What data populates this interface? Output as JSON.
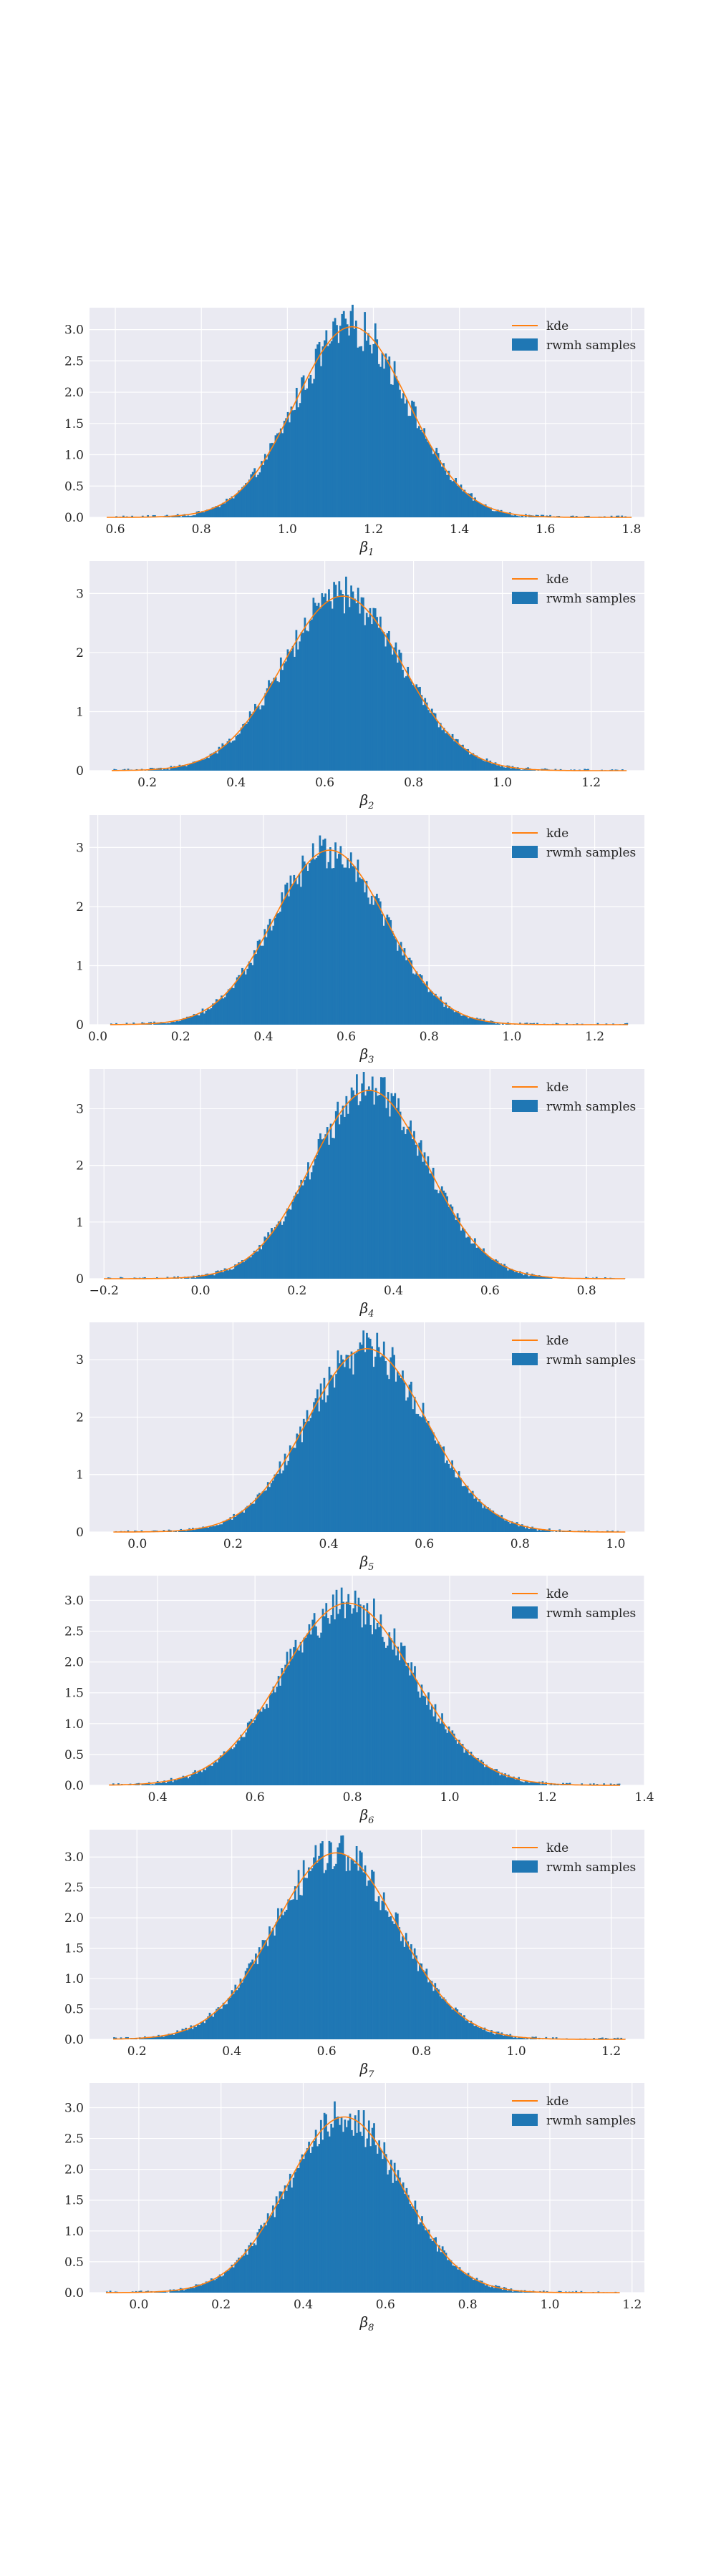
{
  "figure": {
    "background": "#ffffff",
    "axes_facecolor": "#eaeaf2",
    "grid_color": "#ffffff",
    "bar_color": "#1f77b4",
    "kde_color": "#ff7f0e"
  },
  "chart_data": [
    {
      "type": "bar",
      "title": "",
      "xlabel_base": "β",
      "xlabel_sub": "1",
      "xlim": [
        0.54,
        1.83
      ],
      "ylim": [
        0,
        3.35
      ],
      "xticks": [
        0.6,
        0.8,
        1.0,
        1.2,
        1.4,
        1.6,
        1.8
      ],
      "xtick_labels": [
        "0.6",
        "0.8",
        "1.0",
        "1.2",
        "1.4",
        "1.6",
        "1.8"
      ],
      "yticks": [
        0.0,
        0.5,
        1.0,
        1.5,
        2.0,
        2.5,
        3.0
      ],
      "ytick_labels": [
        "0.0",
        "0.5",
        "1.0",
        "1.5",
        "2.0",
        "2.5",
        "3.0"
      ],
      "grid": true,
      "legend_placement": "upper right",
      "series": [
        {
          "name": "kde",
          "kind": "line",
          "distribution": "normal",
          "mean": 1.15,
          "sd": 0.131,
          "range": [
            0.58,
            1.8
          ]
        },
        {
          "name": "rwmh samples",
          "kind": "histogram",
          "distribution": "normal",
          "mean": 1.15,
          "sd": 0.131,
          "range": [
            0.58,
            1.8
          ]
        }
      ]
    },
    {
      "type": "bar",
      "title": "",
      "xlabel_base": "β",
      "xlabel_sub": "2",
      "xlim": [
        0.07,
        1.32
      ],
      "ylim": [
        0,
        3.55
      ],
      "xticks": [
        0.2,
        0.4,
        0.6,
        0.8,
        1.0,
        1.2
      ],
      "xtick_labels": [
        "0.2",
        "0.4",
        "0.6",
        "0.8",
        "1.0",
        "1.2"
      ],
      "yticks": [
        0,
        1,
        2,
        3
      ],
      "ytick_labels": [
        "0",
        "1",
        "2",
        "3"
      ],
      "grid": true,
      "legend_placement": "upper right",
      "series": [
        {
          "name": "kde",
          "kind": "line",
          "distribution": "normal",
          "mean": 0.64,
          "sd": 0.135,
          "range": [
            0.12,
            1.28
          ]
        },
        {
          "name": "rwmh samples",
          "kind": "histogram",
          "distribution": "normal",
          "mean": 0.64,
          "sd": 0.135,
          "range": [
            0.12,
            1.28
          ]
        }
      ]
    },
    {
      "type": "bar",
      "title": "",
      "xlabel_base": "β",
      "xlabel_sub": "3",
      "xlim": [
        -0.02,
        1.32
      ],
      "ylim": [
        0,
        3.55
      ],
      "xticks": [
        0.0,
        0.2,
        0.4,
        0.6,
        0.8,
        1.0,
        1.2
      ],
      "xtick_labels": [
        "0.0",
        "0.2",
        "0.4",
        "0.6",
        "0.8",
        "1.0",
        "1.2"
      ],
      "yticks": [
        0,
        1,
        2,
        3
      ],
      "ytick_labels": [
        "0",
        "1",
        "2",
        "3"
      ],
      "grid": true,
      "legend_placement": "upper right",
      "series": [
        {
          "name": "kde",
          "kind": "line",
          "distribution": "normal",
          "mean": 0.56,
          "sd": 0.135,
          "range": [
            0.03,
            1.28
          ]
        },
        {
          "name": "rwmh samples",
          "kind": "histogram",
          "distribution": "normal",
          "mean": 0.56,
          "sd": 0.135,
          "range": [
            0.03,
            1.28
          ]
        }
      ]
    },
    {
      "type": "bar",
      "title": "",
      "xlabel_base": "β",
      "xlabel_sub": "4",
      "xlim": [
        -0.23,
        0.92
      ],
      "ylim": [
        0,
        3.7
      ],
      "xticks": [
        -0.2,
        0.0,
        0.2,
        0.4,
        0.6,
        0.8
      ],
      "xtick_labels": [
        "−0.2",
        "0.0",
        "0.2",
        "0.4",
        "0.6",
        "0.8"
      ],
      "yticks": [
        0,
        1,
        2,
        3
      ],
      "ytick_labels": [
        "0",
        "1",
        "2",
        "3"
      ],
      "grid": true,
      "legend_placement": "upper right",
      "series": [
        {
          "name": "kde",
          "kind": "line",
          "distribution": "normal",
          "mean": 0.35,
          "sd": 0.12,
          "range": [
            -0.2,
            0.88
          ]
        },
        {
          "name": "rwmh samples",
          "kind": "histogram",
          "distribution": "normal",
          "mean": 0.35,
          "sd": 0.12,
          "range": [
            -0.2,
            0.88
          ]
        }
      ]
    },
    {
      "type": "bar",
      "title": "",
      "xlabel_base": "β",
      "xlabel_sub": "5",
      "xlim": [
        -0.1,
        1.06
      ],
      "ylim": [
        0,
        3.65
      ],
      "xticks": [
        0.0,
        0.2,
        0.4,
        0.6,
        0.8,
        1.0
      ],
      "xtick_labels": [
        "0.0",
        "0.2",
        "0.4",
        "0.6",
        "0.8",
        "1.0"
      ],
      "yticks": [
        0,
        1,
        2,
        3
      ],
      "ytick_labels": [
        "0",
        "1",
        "2",
        "3"
      ],
      "grid": true,
      "legend_placement": "upper right",
      "series": [
        {
          "name": "kde",
          "kind": "line",
          "distribution": "normal",
          "mean": 0.48,
          "sd": 0.125,
          "range": [
            -0.05,
            1.02
          ]
        },
        {
          "name": "rwmh samples",
          "kind": "histogram",
          "distribution": "normal",
          "mean": 0.48,
          "sd": 0.125,
          "range": [
            -0.05,
            1.02
          ]
        }
      ]
    },
    {
      "type": "bar",
      "title": "",
      "xlabel_base": "β",
      "xlabel_sub": "6",
      "xlim": [
        0.26,
        1.4
      ],
      "ylim": [
        0,
        3.4
      ],
      "xticks": [
        0.4,
        0.6,
        0.8,
        1.0,
        1.2,
        1.4
      ],
      "xtick_labels": [
        "0.4",
        "0.6",
        "0.8",
        "1.0",
        "1.2",
        "1.4"
      ],
      "yticks": [
        0.0,
        0.5,
        1.0,
        1.5,
        2.0,
        2.5,
        3.0
      ],
      "ytick_labels": [
        "0.0",
        "0.5",
        "1.0",
        "1.5",
        "2.0",
        "2.5",
        "3.0"
      ],
      "grid": true,
      "legend_placement": "upper right",
      "series": [
        {
          "name": "kde",
          "kind": "line",
          "distribution": "normal",
          "mean": 0.79,
          "sd": 0.135,
          "range": [
            0.3,
            1.35
          ]
        },
        {
          "name": "rwmh samples",
          "kind": "histogram",
          "distribution": "normal",
          "mean": 0.79,
          "sd": 0.135,
          "range": [
            0.3,
            1.35
          ]
        }
      ]
    },
    {
      "type": "bar",
      "title": "",
      "xlabel_base": "β",
      "xlabel_sub": "7",
      "xlim": [
        0.1,
        1.27
      ],
      "ylim": [
        0,
        3.45
      ],
      "xticks": [
        0.2,
        0.4,
        0.6,
        0.8,
        1.0,
        1.2
      ],
      "xtick_labels": [
        "0.2",
        "0.4",
        "0.6",
        "0.8",
        "1.0",
        "1.2"
      ],
      "yticks": [
        0.0,
        0.5,
        1.0,
        1.5,
        2.0,
        2.5,
        3.0
      ],
      "ytick_labels": [
        "0.0",
        "0.5",
        "1.0",
        "1.5",
        "2.0",
        "2.5",
        "3.0"
      ],
      "grid": true,
      "legend_placement": "upper right",
      "series": [
        {
          "name": "kde",
          "kind": "line",
          "distribution": "normal",
          "mean": 0.62,
          "sd": 0.13,
          "range": [
            0.15,
            1.23
          ]
        },
        {
          "name": "rwmh samples",
          "kind": "histogram",
          "distribution": "normal",
          "mean": 0.62,
          "sd": 0.13,
          "range": [
            0.15,
            1.23
          ]
        }
      ]
    },
    {
      "type": "bar",
      "title": "",
      "xlabel_base": "β",
      "xlabel_sub": "8",
      "xlim": [
        -0.12,
        1.23
      ],
      "ylim": [
        0,
        3.4
      ],
      "xticks": [
        0.0,
        0.2,
        0.4,
        0.6,
        0.8,
        1.0,
        1.2
      ],
      "xtick_labels": [
        "0.0",
        "0.2",
        "0.4",
        "0.6",
        "0.8",
        "1.0",
        "1.2"
      ],
      "yticks": [
        0.0,
        0.5,
        1.0,
        1.5,
        2.0,
        2.5,
        3.0
      ],
      "ytick_labels": [
        "0.0",
        "0.5",
        "1.0",
        "1.5",
        "2.0",
        "2.5",
        "3.0"
      ],
      "grid": true,
      "legend_placement": "upper right",
      "series": [
        {
          "name": "kde",
          "kind": "line",
          "distribution": "normal",
          "mean": 0.5,
          "sd": 0.14,
          "range": [
            -0.08,
            1.17
          ]
        },
        {
          "name": "rwmh samples",
          "kind": "histogram",
          "distribution": "normal",
          "mean": 0.5,
          "sd": 0.14,
          "range": [
            -0.08,
            1.17
          ]
        }
      ]
    }
  ]
}
